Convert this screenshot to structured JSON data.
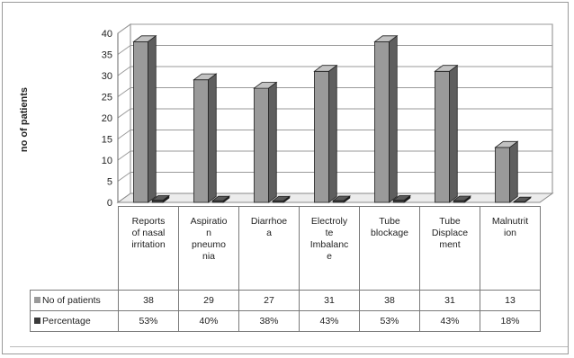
{
  "chart_data": {
    "type": "bar",
    "ylabel": "no of patients",
    "categories": [
      "Reports of nasal irritation",
      "Aspiration pneumonia",
      "Diarrhoea",
      "Electrolyte Imbalance",
      "Tube blockage",
      "Tube Displacement",
      "Malnutrition"
    ],
    "category_lines": [
      [
        "Reports",
        "of nasal",
        "irritation"
      ],
      [
        "Aspiratio",
        "n",
        "pneumo",
        "nia"
      ],
      [
        "Diarrhoe",
        "a"
      ],
      [
        "Electroly",
        "te",
        "Imbalanc",
        "e"
      ],
      [
        "Tube",
        "blockage"
      ],
      [
        "Tube",
        "Displace",
        "ment"
      ],
      [
        "Malnutrit",
        "ion"
      ]
    ],
    "series": [
      {
        "name": "No of patients",
        "values": [
          38,
          29,
          27,
          31,
          38,
          31,
          13
        ],
        "labels": [
          "38",
          "29",
          "27",
          "31",
          "38",
          "31",
          "13"
        ],
        "color": "#9a9a9a"
      },
      {
        "name": "Percentage",
        "values": [
          0.53,
          0.4,
          0.38,
          0.43,
          0.53,
          0.43,
          0.18
        ],
        "labels": [
          "53%",
          "40%",
          "38%",
          "43%",
          "53%",
          "43%",
          "18%"
        ],
        "color": "#3a3a3a"
      }
    ],
    "yticks": [
      0,
      5,
      10,
      15,
      20,
      25,
      30,
      35,
      40
    ],
    "ylim": [
      0,
      40
    ],
    "grid": true,
    "legend": "data table"
  }
}
